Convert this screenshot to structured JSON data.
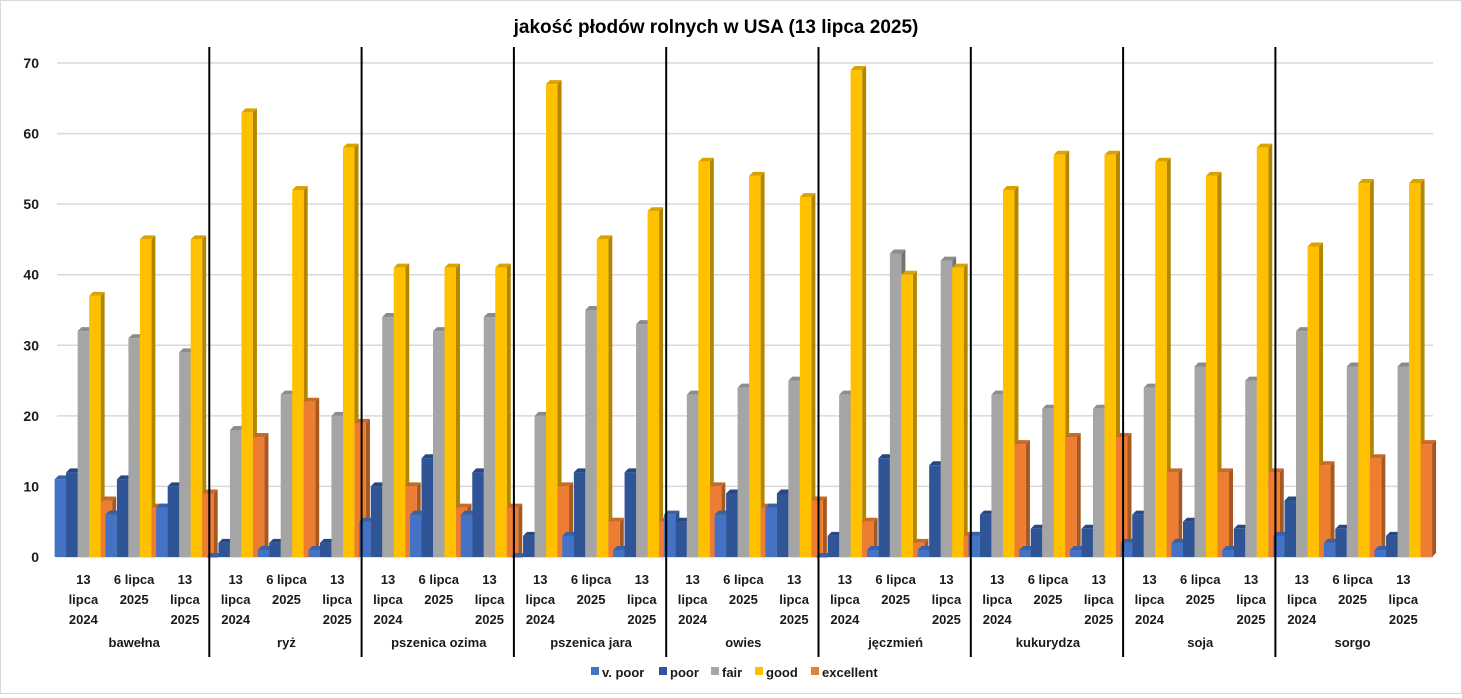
{
  "chart_data": {
    "type": "bar",
    "title": "jakość płodów rolnych w USA (13 lipca 2025)",
    "xlabel": "",
    "ylabel": "",
    "ylim": [
      0,
      70
    ],
    "yticks": [
      0,
      10,
      20,
      30,
      40,
      50,
      60,
      70
    ],
    "grid": true,
    "legend_position": "bottom",
    "period_labels": [
      [
        "13",
        "lipca",
        "2024"
      ],
      [
        "6 lipca",
        "2025"
      ],
      [
        "13",
        "lipca",
        "2025"
      ]
    ],
    "groups": [
      {
        "name": "bawełna",
        "data": [
          [
            11,
            12,
            32,
            37,
            8
          ],
          [
            6,
            11,
            31,
            45,
            7
          ],
          [
            7,
            10,
            29,
            45,
            9
          ]
        ]
      },
      {
        "name": "ryż",
        "data": [
          [
            0,
            2,
            18,
            63,
            17
          ],
          [
            1,
            2,
            23,
            52,
            22
          ],
          [
            1,
            2,
            20,
            58,
            19
          ]
        ]
      },
      {
        "name": "pszenica ozima",
        "data": [
          [
            5,
            10,
            34,
            41,
            10
          ],
          [
            6,
            14,
            32,
            41,
            7
          ],
          [
            6,
            12,
            34,
            41,
            7
          ]
        ]
      },
      {
        "name": "pszenica jara",
        "data": [
          [
            0,
            3,
            20,
            67,
            10
          ],
          [
            3,
            12,
            35,
            45,
            5
          ],
          [
            1,
            12,
            33,
            49,
            5
          ]
        ]
      },
      {
        "name": "owies",
        "data": [
          [
            6,
            5,
            23,
            56,
            10
          ],
          [
            6,
            9,
            24,
            54,
            7
          ],
          [
            7,
            9,
            25,
            51,
            8
          ]
        ]
      },
      {
        "name": "jęczmień",
        "data": [
          [
            0,
            3,
            23,
            69,
            5
          ],
          [
            1,
            14,
            43,
            40,
            2
          ],
          [
            1,
            13,
            42,
            41,
            3
          ]
        ]
      },
      {
        "name": "kukurydza",
        "data": [
          [
            3,
            6,
            23,
            52,
            16
          ],
          [
            1,
            4,
            21,
            57,
            17
          ],
          [
            1,
            4,
            21,
            57,
            17
          ]
        ]
      },
      {
        "name": "soja",
        "data": [
          [
            2,
            6,
            24,
            56,
            12
          ],
          [
            2,
            5,
            27,
            54,
            12
          ],
          [
            1,
            4,
            25,
            58,
            12
          ]
        ]
      },
      {
        "name": "sorgo",
        "data": [
          [
            3,
            8,
            32,
            44,
            13
          ],
          [
            2,
            4,
            27,
            53,
            14
          ],
          [
            1,
            3,
            27,
            53,
            16
          ]
        ]
      }
    ],
    "series": [
      {
        "name": "v. poor",
        "color": "#4472c4"
      },
      {
        "name": "poor",
        "color": "#2f5597"
      },
      {
        "name": "fair",
        "color": "#a5a5a5"
      },
      {
        "name": "good",
        "color": "#ffc000"
      },
      {
        "name": "excellent",
        "color": "#ed7d31"
      }
    ]
  }
}
